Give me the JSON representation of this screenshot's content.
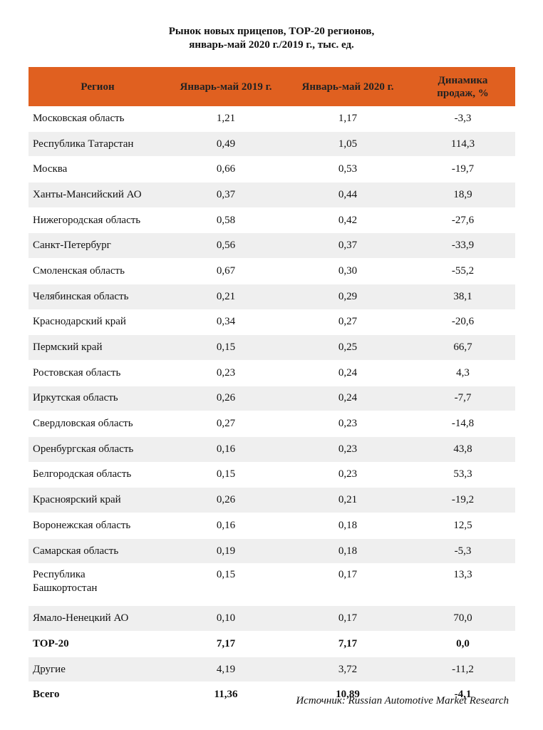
{
  "title": {
    "line1": "Рынок новых прицепов, ТОР-20 регионов,",
    "line2": "январь-май 2020 г./2019 г., тыс. ед."
  },
  "headers": {
    "region": "Регион",
    "y2019": "Январь-май 2019 г.",
    "y2020": "Январь-май 2020 г.",
    "dyn_line1": "Динамика",
    "dyn_line2": "продаж, %"
  },
  "rows": [
    {
      "region": "Московская область",
      "y2019": "1,21",
      "y2020": "1,17",
      "dyn": "-3,3"
    },
    {
      "region": "Республика Татарстан",
      "y2019": "0,49",
      "y2020": "1,05",
      "dyn": "114,3"
    },
    {
      "region": "Москва",
      "y2019": "0,66",
      "y2020": "0,53",
      "dyn": "-19,7"
    },
    {
      "region": "Ханты-Мансийский АО",
      "y2019": "0,37",
      "y2020": "0,44",
      "dyn": "18,9"
    },
    {
      "region": "Нижегородская область",
      "y2019": "0,58",
      "y2020": "0,42",
      "dyn": "-27,6"
    },
    {
      "region": "Санкт-Петербург",
      "y2019": "0,56",
      "y2020": "0,37",
      "dyn": "-33,9"
    },
    {
      "region": "Смоленская область",
      "y2019": "0,67",
      "y2020": "0,30",
      "dyn": "-55,2"
    },
    {
      "region": "Челябинская область",
      "y2019": "0,21",
      "y2020": "0,29",
      "dyn": "38,1"
    },
    {
      "region": "Краснодарский край",
      "y2019": "0,34",
      "y2020": "0,27",
      "dyn": "-20,6"
    },
    {
      "region": "Пермский край",
      "y2019": "0,15",
      "y2020": "0,25",
      "dyn": "66,7"
    },
    {
      "region": "Ростовская область",
      "y2019": "0,23",
      "y2020": "0,24",
      "dyn": "4,3"
    },
    {
      "region": "Иркутская область",
      "y2019": "0,26",
      "y2020": "0,24",
      "dyn": "-7,7"
    },
    {
      "region": "Свердловская область",
      "y2019": "0,27",
      "y2020": "0,23",
      "dyn": "-14,8"
    },
    {
      "region": "Оренбургская область",
      "y2019": "0,16",
      "y2020": "0,23",
      "dyn": "43,8"
    },
    {
      "region": "Белгородская область",
      "y2019": "0,15",
      "y2020": "0,23",
      "dyn": "53,3"
    },
    {
      "region": "Красноярский край",
      "y2019": "0,26",
      "y2020": "0,21",
      "dyn": "-19,2"
    },
    {
      "region": "Воронежская область",
      "y2019": "0,16",
      "y2020": "0,18",
      "dyn": "12,5"
    },
    {
      "region": "Самарская область",
      "y2019": "0,19",
      "y2020": "0,18",
      "dyn": "-5,3"
    },
    {
      "region_line1": "Республика",
      "region_line2": "Башкортостан",
      "y2019": "0,15",
      "y2020": "0,17",
      "dyn": "13,3"
    },
    {
      "region": "Ямало-Ненецкий АО",
      "y2019": "0,10",
      "y2020": "0,17",
      "dyn": "70,0"
    },
    {
      "region": "ТОР-20",
      "y2019": "7,17",
      "y2020": "7,17",
      "dyn": "0,0"
    },
    {
      "region": "Другие",
      "y2019": "4,19",
      "y2020": "3,72",
      "dyn": "-11,2"
    },
    {
      "region": "Всего",
      "y2019": "11,36",
      "y2020": "10,89",
      "dyn": "-4,1"
    }
  ],
  "source": "Источник: Russian Automotive Market Research",
  "colors": {
    "header_bg": "#e06020",
    "stripe": "#efefef"
  }
}
